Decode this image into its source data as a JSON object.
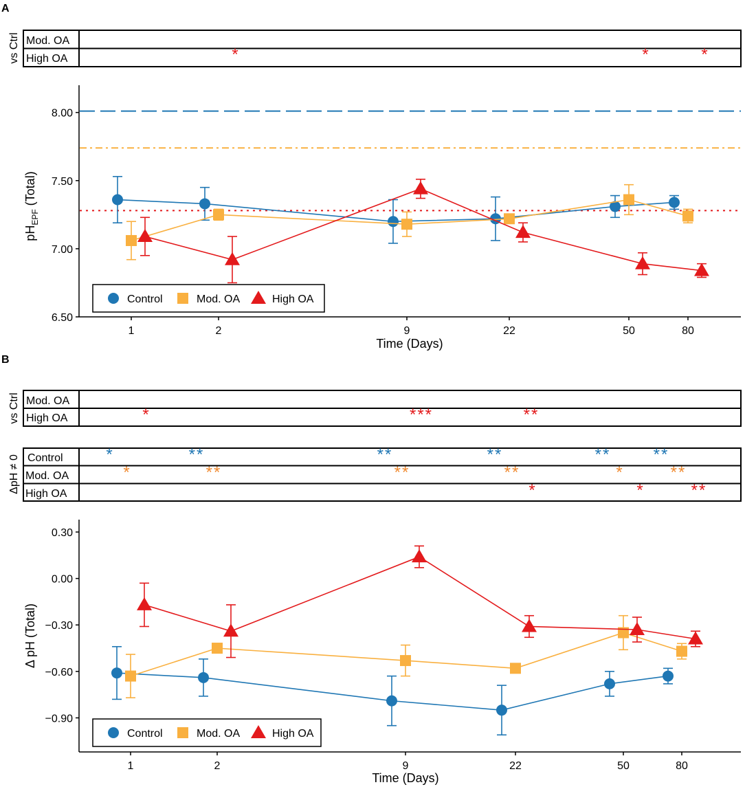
{
  "figure": {
    "panel_a_label": "A",
    "panel_b_label": "B",
    "vs_ctrl_label": "vs Ctrl",
    "dph_label": "ΔpH ≠ 0"
  },
  "colors": {
    "control": "#1f77b4",
    "mod_oa": "#f9b040",
    "mod_oa_star": "#f08a30",
    "high_oa": "#e31a1c",
    "text": "#000000"
  },
  "chart_data": [
    {
      "id": "A",
      "type": "line",
      "title": "",
      "xlabel": "Time (Days)",
      "ylabel_main": "pH",
      "ylabel_sub": "EPF",
      "ylabel_tail": " (Total)",
      "x_ticks": [
        "1",
        "2",
        "9",
        "22",
        "50",
        "80"
      ],
      "ylim": [
        6.5,
        8.2
      ],
      "y_ticks": [
        6.5,
        7.0,
        7.5,
        8.0
      ],
      "y_tick_labels": [
        "6.50",
        "7.00",
        "7.50",
        "8.00"
      ],
      "reference_lines": [
        {
          "name": "Control seawater",
          "value": 8.01,
          "style": "dashed",
          "series": "control"
        },
        {
          "name": "Mod. OA seawater",
          "value": 7.74,
          "style": "dashdot",
          "series": "mod_oa"
        },
        {
          "name": "High OA seawater",
          "value": 7.28,
          "style": "dotted",
          "series": "high_oa"
        }
      ],
      "series": [
        {
          "key": "control",
          "name": "Control",
          "marker": "circle",
          "values": [
            7.36,
            7.33,
            7.2,
            7.22,
            7.31,
            7.34
          ],
          "err": [
            0.17,
            0.12,
            0.16,
            0.16,
            0.08,
            0.05
          ]
        },
        {
          "key": "mod_oa",
          "name": "Mod. OA",
          "marker": "square",
          "values": [
            7.06,
            7.25,
            7.18,
            7.22,
            7.36,
            7.24
          ],
          "err": [
            0.14,
            0.04,
            0.09,
            0.03,
            0.11,
            0.05
          ]
        },
        {
          "key": "high_oa",
          "name": "High OA",
          "marker": "triangle",
          "values": [
            7.09,
            6.92,
            7.44,
            7.12,
            6.89,
            6.84
          ],
          "err": [
            0.14,
            0.17,
            0.07,
            0.07,
            0.08,
            0.05
          ]
        }
      ],
      "significance": {
        "rows": [
          {
            "label": "Mod. OA",
            "stars": [
              "",
              "",
              "",
              "",
              "",
              ""
            ],
            "series": "mod_oa"
          },
          {
            "label": "High OA",
            "stars": [
              "",
              "*",
              "",
              "",
              "*",
              "*"
            ],
            "series": "high_oa"
          }
        ]
      },
      "dph_significance": null,
      "legend": {
        "position": "bottom-left",
        "entries": [
          "Control",
          "Mod. OA",
          "High OA"
        ]
      }
    },
    {
      "id": "B",
      "type": "line",
      "title": "",
      "xlabel": "Time (Days)",
      "ylabel_main": "Δ pH (Total)",
      "ylabel_sub": "",
      "ylabel_tail": "",
      "x_ticks": [
        "1",
        "2",
        "9",
        "22",
        "50",
        "80"
      ],
      "ylim": [
        -1.12,
        0.38
      ],
      "y_ticks": [
        -0.9,
        -0.6,
        -0.3,
        0.0,
        0.3
      ],
      "y_tick_labels": [
        "−0.90",
        "−0.60",
        "−0.30",
        "0.00",
        "0.30"
      ],
      "reference_lines": [],
      "series": [
        {
          "key": "control",
          "name": "Control",
          "marker": "circle",
          "values": [
            -0.61,
            -0.64,
            -0.79,
            -0.85,
            -0.68,
            -0.63
          ],
          "err": [
            0.17,
            0.12,
            0.16,
            0.16,
            0.08,
            0.05
          ]
        },
        {
          "key": "mod_oa",
          "name": "Mod. OA",
          "marker": "square",
          "values": [
            -0.63,
            -0.45,
            -0.53,
            -0.58,
            -0.35,
            -0.47
          ],
          "err": [
            0.14,
            0.03,
            0.1,
            0.03,
            0.11,
            0.05
          ]
        },
        {
          "key": "high_oa",
          "name": "High OA",
          "marker": "triangle",
          "values": [
            -0.17,
            -0.34,
            0.14,
            -0.31,
            -0.33,
            -0.39
          ],
          "err": [
            0.14,
            0.17,
            0.07,
            0.07,
            0.08,
            0.05
          ]
        }
      ],
      "significance": {
        "rows": [
          {
            "label": "Mod. OA",
            "stars": [
              "",
              "",
              "",
              "",
              "",
              ""
            ],
            "series": "mod_oa"
          },
          {
            "label": "High OA",
            "stars": [
              "*",
              "",
              "***",
              "**",
              "",
              ""
            ],
            "series": "high_oa"
          }
        ]
      },
      "dph_significance": {
        "rows": [
          {
            "label": "Control",
            "stars": [
              "*",
              "**",
              "**",
              "**",
              "**",
              "**"
            ],
            "series": "control"
          },
          {
            "label": "Mod. OA",
            "stars": [
              "*",
              "**",
              "**",
              "**",
              "*",
              "**"
            ],
            "series": "mod_oa_star"
          },
          {
            "label": "High OA",
            "stars": [
              "",
              "",
              "",
              "*",
              "*",
              "**"
            ],
            "series": "high_oa"
          }
        ]
      },
      "legend": {
        "position": "bottom-left",
        "entries": [
          "Control",
          "Mod. OA",
          "High OA"
        ]
      }
    }
  ]
}
